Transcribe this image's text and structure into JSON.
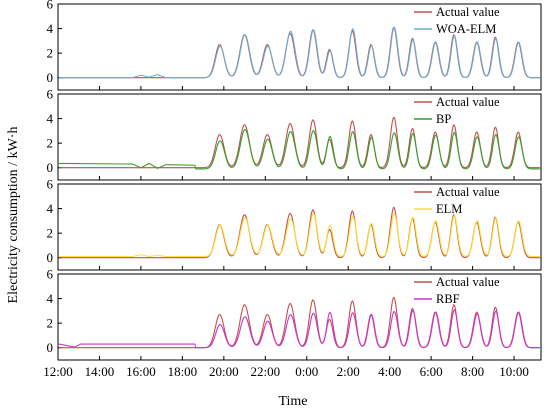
{
  "figure": {
    "ylabel": "Electricity consumption / kW·h",
    "xlabel": "Time"
  },
  "chart_data": {
    "type": "line",
    "xlabel": "Time",
    "ylabel": "Electricity consumption / kW·h",
    "x_ticks": [
      "12:00",
      "14:00",
      "16:00",
      "18:00",
      "20:00",
      "22:00",
      "0:00",
      "2:00",
      "4:00",
      "6:00",
      "8:00",
      "10:00"
    ],
    "x_tick_positions": [
      0,
      2,
      4,
      6,
      8,
      10,
      12,
      14,
      16,
      18,
      20,
      22
    ],
    "xlim": [
      0,
      23.3
    ],
    "ylim": [
      -1,
      6
    ],
    "y_ticks": [
      0,
      2,
      4,
      6
    ],
    "grid": false,
    "legend_position": "top-right",
    "colors": {
      "actual": "#c0504d",
      "woa_elm": "#6baed6",
      "bp": "#33a02c",
      "elm": "#ffe135",
      "rbf": "#cc33cc"
    },
    "peaks": {
      "t": [
        7.8,
        9.0,
        10.1,
        11.2,
        12.3,
        13.1,
        14.2,
        15.1,
        16.2,
        17.1,
        18.2,
        19.1,
        20.2,
        21.1,
        22.2
      ],
      "width": [
        0.3,
        0.32,
        0.3,
        0.3,
        0.26,
        0.22,
        0.24,
        0.22,
        0.24,
        0.22,
        0.24,
        0.22,
        0.24,
        0.22,
        0.24
      ],
      "actual": [
        2.7,
        3.5,
        2.7,
        3.6,
        3.9,
        2.3,
        3.8,
        2.7,
        4.1,
        3.2,
        2.9,
        3.5,
        2.9,
        3.3,
        2.9
      ]
    },
    "panels": [
      {
        "name": "WOA-ELM",
        "legend": [
          "Actual value",
          "WOA-ELM"
        ],
        "baseline": 0.0,
        "pre_points": [
          [
            3.6,
            0
          ],
          [
            4.0,
            0.2
          ],
          [
            4.4,
            0.05
          ],
          [
            4.8,
            0.25
          ],
          [
            5.2,
            0
          ],
          [
            6.6,
            0
          ]
        ],
        "amp": [
          0.95,
          1.0,
          0.95,
          1.05,
          1.0,
          0.95,
          1.05,
          0.97,
          1.0,
          0.97,
          1.0,
          0.98,
          1.0,
          0.97,
          1.0
        ],
        "off": 0.0,
        "series": [
          {
            "name": "Actual value",
            "color_key": "actual"
          },
          {
            "name": "WOA-ELM",
            "color_key": "woa_elm"
          }
        ]
      },
      {
        "name": "BP",
        "legend": [
          "Actual value",
          "BP"
        ],
        "baseline": 0.35,
        "pre_points": [
          [
            3.6,
            0.3
          ],
          [
            4.0,
            0.0
          ],
          [
            4.4,
            0.35
          ],
          [
            4.8,
            -0.05
          ],
          [
            5.2,
            0.25
          ],
          [
            6.6,
            0.2
          ]
        ],
        "amp": [
          0.85,
          0.92,
          0.9,
          0.85,
          0.8,
          1.15,
          0.8,
          0.95,
          0.72,
          0.9,
          0.95,
          0.85,
          0.9,
          0.85,
          0.9
        ],
        "off": -0.1,
        "series": [
          {
            "name": "Actual value",
            "color_key": "actual"
          },
          {
            "name": "BP",
            "color_key": "bp"
          }
        ]
      },
      {
        "name": "ELM",
        "legend": [
          "Actual value",
          "ELM"
        ],
        "baseline": 0.1,
        "pre_points": [
          [
            3.6,
            0.1
          ],
          [
            4.0,
            0.25
          ],
          [
            4.4,
            0.1
          ],
          [
            4.8,
            0.2
          ],
          [
            5.2,
            0.1
          ],
          [
            6.6,
            0.1
          ]
        ],
        "amp": [
          0.95,
          0.9,
          0.95,
          0.85,
          0.9,
          1.1,
          0.85,
          1.0,
          0.85,
          1.0,
          1.0,
          0.95,
          1.0,
          0.95,
          1.0
        ],
        "off": 0.1,
        "series": [
          {
            "name": "Actual value",
            "color_key": "actual"
          },
          {
            "name": "ELM",
            "color_key": "elm"
          }
        ]
      },
      {
        "name": "RBF",
        "legend": [
          "Actual value",
          "RBF"
        ],
        "baseline": 0.3,
        "pre_points": [
          [
            0.8,
            0.05
          ],
          [
            1.1,
            0.3
          ],
          [
            3.5,
            0.3
          ],
          [
            3.6,
            0.3
          ],
          [
            4.0,
            0.3
          ],
          [
            4.4,
            0.3
          ],
          [
            4.8,
            0.3
          ],
          [
            5.2,
            0.3
          ],
          [
            6.6,
            0.3
          ]
        ],
        "amp": [
          0.7,
          0.72,
          0.8,
          0.75,
          0.72,
          1.25,
          0.75,
          1.0,
          0.72,
          0.95,
          1.0,
          0.88,
          0.95,
          0.9,
          1.0
        ],
        "off": 0.0,
        "series": [
          {
            "name": "Actual value",
            "color_key": "actual"
          },
          {
            "name": "RBF",
            "color_key": "rbf"
          }
        ]
      }
    ]
  }
}
